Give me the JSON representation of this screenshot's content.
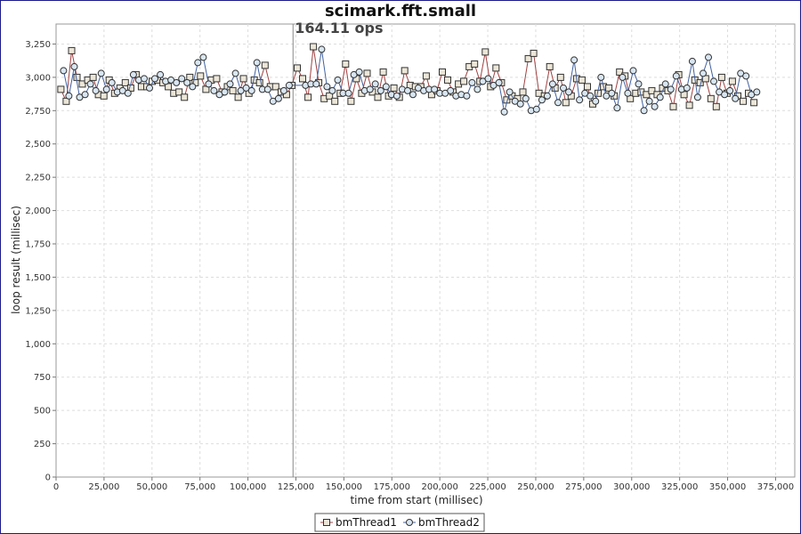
{
  "chart_data": {
    "type": "line",
    "title": "scimark.fft.small",
    "xlabel": "time from start (millisec)",
    "ylabel": "loop result (millisec)",
    "xlim": [
      0,
      385000
    ],
    "ylim": [
      0,
      3400
    ],
    "x_ticks": [
      0,
      25000,
      50000,
      75000,
      100000,
      125000,
      150000,
      175000,
      200000,
      225000,
      250000,
      275000,
      300000,
      325000,
      350000,
      375000
    ],
    "x_tick_labels": [
      "0",
      "25,000",
      "50,000",
      "75,000",
      "100,000",
      "125,000",
      "150,000",
      "175,000",
      "200,000",
      "225,000",
      "250,000",
      "275,000",
      "300,000",
      "325,000",
      "350,000",
      "375,000"
    ],
    "y_ticks": [
      0,
      250,
      500,
      750,
      1000,
      1250,
      1500,
      1750,
      2000,
      2250,
      2500,
      2750,
      3000,
      3250
    ],
    "y_tick_labels": [
      "0",
      "250",
      "500",
      "750",
      "1,000",
      "1,250",
      "1,500",
      "1,750",
      "2,000",
      "2,250",
      "2,500",
      "2,750",
      "3,000",
      "3,250"
    ],
    "grid": true,
    "legend_position": "bottom-center",
    "annotation": {
      "text": "164.11 ops",
      "x": 123500
    },
    "series": [
      {
        "name": "bmThread1",
        "color": "#a04040",
        "marker": "square",
        "x": [
          2500,
          5300,
          8100,
          10900,
          13700,
          16500,
          19300,
          22100,
          24900,
          27700,
          30500,
          33300,
          36100,
          38900,
          41700,
          44500,
          47300,
          50100,
          52900,
          55700,
          58500,
          61300,
          64100,
          66900,
          69700,
          72500,
          75300,
          78100,
          80900,
          83700,
          86500,
          89300,
          92100,
          94900,
          97700,
          100500,
          103300,
          106100,
          108900,
          111700,
          114500,
          117300,
          120100,
          122900,
          125700,
          128500,
          131300,
          134100,
          136900,
          139700,
          142500,
          145300,
          148100,
          150900,
          153700,
          156500,
          159300,
          162100,
          164900,
          167700,
          170500,
          173300,
          176100,
          178900,
          181700,
          184500,
          187300,
          190100,
          192900,
          195700,
          198500,
          201300,
          204100,
          206900,
          209700,
          212500,
          215300,
          218100,
          220900,
          223700,
          226500,
          229300,
          232100,
          234900,
          237700,
          240500,
          243300,
          246100,
          248900,
          251700,
          254500,
          257300,
          260100,
          262900,
          265700,
          268500,
          271300,
          274100,
          276900,
          279700,
          282500,
          285300,
          288100,
          290900,
          293700,
          296500,
          299300,
          302100,
          304900,
          307700,
          310500,
          313300,
          316100,
          318900,
          321700,
          324500,
          327300,
          330100,
          332900,
          335700,
          338500,
          341300,
          344100,
          346900,
          349700,
          352500,
          355300,
          358100,
          360900,
          363700
        ],
        "values": [
          2910,
          2820,
          3200,
          3000,
          2950,
          2980,
          3000,
          2870,
          2860,
          2980,
          2880,
          2920,
          2960,
          2920,
          3020,
          2930,
          2930,
          2970,
          2980,
          2960,
          2930,
          2880,
          2890,
          2850,
          3000,
          2960,
          3010,
          2910,
          2980,
          2990,
          2890,
          2930,
          2900,
          2850,
          2990,
          2880,
          2980,
          2960,
          3090,
          2930,
          2930,
          2890,
          2870,
          2940,
          3070,
          2990,
          2850,
          3230,
          2960,
          2840,
          2860,
          2820,
          2880,
          3100,
          2820,
          2990,
          2880,
          3030,
          2890,
          2850,
          3040,
          2860,
          2920,
          2850,
          3050,
          2940,
          2930,
          2930,
          3010,
          2870,
          2900,
          3040,
          2980,
          2890,
          2950,
          2970,
          3080,
          3100,
          2970,
          3190,
          2930,
          3070,
          2960,
          2830,
          2860,
          2840,
          2890,
          3140,
          3180,
          2880,
          2860,
          3080,
          2920,
          3000,
          2810,
          2860,
          2990,
          2980,
          2930,
          2800,
          2880,
          2930,
          2920,
          2860,
          3040,
          3010,
          2840,
          2880,
          2890,
          2870,
          2900,
          2870,
          2920,
          2900,
          2780,
          3020,
          2870,
          2790,
          2980,
          2960,
          2990,
          2840,
          2780,
          3000,
          2880,
          2970,
          2860,
          2820,
          2880,
          2810
        ]
      },
      {
        "name": "bmThread2",
        "color": "#4060a0",
        "marker": "circle",
        "x": [
          3900,
          6700,
          9500,
          12300,
          15100,
          17900,
          20700,
          23500,
          26300,
          29100,
          31900,
          34700,
          37500,
          40300,
          43100,
          45900,
          48700,
          51500,
          54300,
          57100,
          59900,
          62700,
          65500,
          68300,
          71100,
          73900,
          76700,
          79500,
          82300,
          85100,
          87900,
          90700,
          93500,
          96300,
          99100,
          101900,
          104700,
          107500,
          110300,
          113100,
          115900,
          118700,
          121500,
          130000,
          132800,
          135600,
          138400,
          141200,
          144000,
          146800,
          149600,
          152400,
          155200,
          158000,
          160800,
          163600,
          166400,
          169200,
          172000,
          174800,
          177600,
          180400,
          183200,
          186000,
          188800,
          191600,
          194400,
          197200,
          200000,
          202800,
          205600,
          208400,
          211200,
          214000,
          216800,
          219600,
          222400,
          225200,
          228000,
          230800,
          233600,
          236400,
          239200,
          242000,
          244800,
          247600,
          250400,
          253200,
          256000,
          258800,
          261600,
          264400,
          267200,
          270000,
          272800,
          275600,
          278400,
          281200,
          284000,
          286800,
          289600,
          292400,
          295200,
          298000,
          300800,
          303600,
          306400,
          309200,
          312000,
          314800,
          317600,
          320400,
          323200,
          326000,
          328800,
          331600,
          334400,
          337200,
          340000,
          342800,
          345600,
          348400,
          351200,
          354000,
          356800,
          359600,
          362400,
          365200
        ],
        "values": [
          3050,
          2860,
          3080,
          2850,
          2870,
          2950,
          2900,
          3030,
          2910,
          2960,
          2890,
          2900,
          2880,
          3020,
          2980,
          2990,
          2920,
          2990,
          3020,
          2970,
          2980,
          2960,
          2990,
          2960,
          2930,
          3110,
          3150,
          2950,
          2900,
          2870,
          2890,
          2950,
          3030,
          2900,
          2920,
          2900,
          3110,
          2910,
          2910,
          2820,
          2840,
          2900,
          2940,
          2940,
          2950,
          2950,
          3210,
          2930,
          2900,
          2980,
          2880,
          2880,
          3020,
          3040,
          2900,
          2910,
          2950,
          2900,
          2930,
          2870,
          2860,
          2910,
          2900,
          2870,
          2920,
          2900,
          2910,
          2910,
          2880,
          2880,
          2900,
          2860,
          2870,
          2860,
          2960,
          2910,
          2970,
          2990,
          2940,
          2960,
          2740,
          2890,
          2820,
          2800,
          2840,
          2750,
          2760,
          2830,
          2860,
          2950,
          2810,
          2920,
          2890,
          3130,
          2830,
          2880,
          2860,
          2820,
          3000,
          2860,
          2880,
          2770,
          3000,
          2880,
          3050,
          2950,
          2750,
          2820,
          2780,
          2850,
          2950,
          2910,
          3010,
          2910,
          2920,
          3120,
          2850,
          3030,
          3150,
          2970,
          2890,
          2870,
          2900,
          2840,
          3030,
          3010,
          2870,
          2890
        ]
      }
    ]
  }
}
